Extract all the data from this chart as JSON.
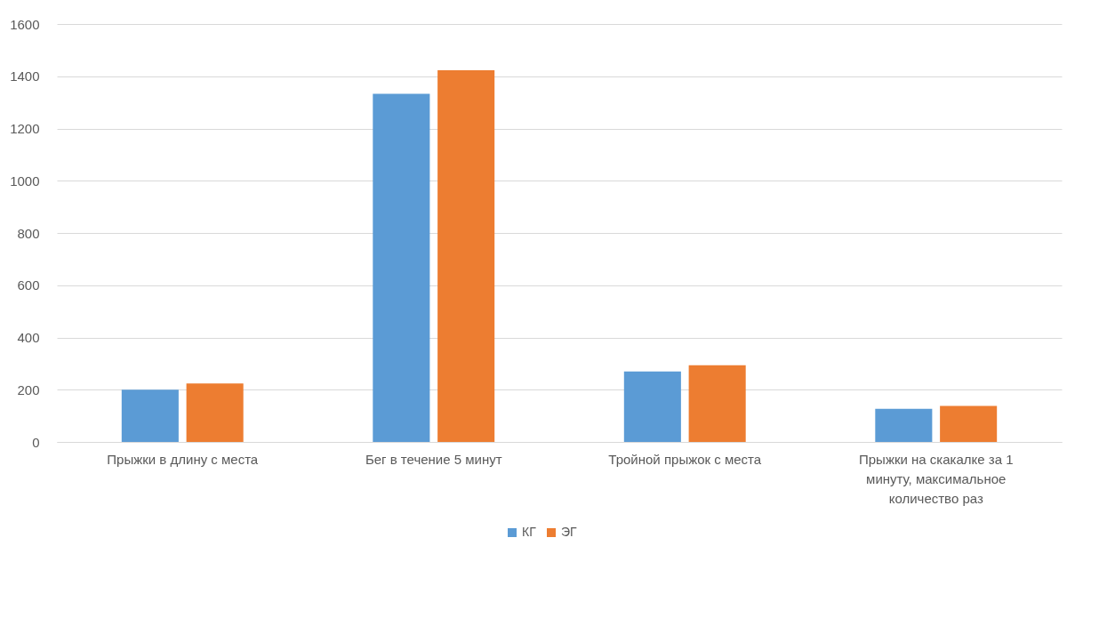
{
  "chart_data": {
    "type": "bar",
    "categories": [
      "Прыжки в длину с места",
      "Бег в течение 5 минут",
      "Тройной прыжок с места",
      "Прыжки на скакалке за 1 минуту, максимальное количество раз"
    ],
    "series": [
      {
        "name": "КГ",
        "color": "#5b9bd5",
        "values": [
          200,
          1333,
          270,
          127
        ]
      },
      {
        "name": "ЭГ",
        "color": "#ed7d31",
        "values": [
          224,
          1423,
          294,
          138
        ]
      }
    ],
    "ylim": [
      0,
      1600
    ],
    "yticks": [
      0,
      200,
      400,
      600,
      800,
      1000,
      1200,
      1400,
      1600
    ],
    "grid": "y",
    "legend": "bottom"
  }
}
